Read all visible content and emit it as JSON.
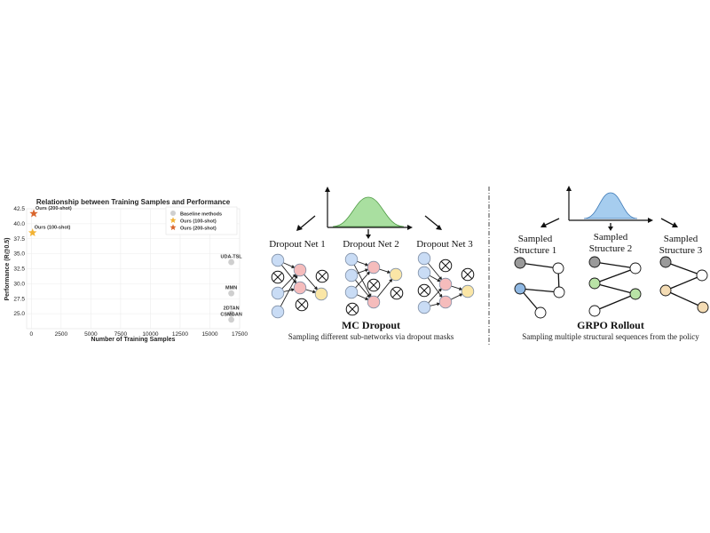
{
  "chart_data": {
    "type": "scatter",
    "title": "Relationship between Training Samples and Performance",
    "xlabel": "Number of Training Samples",
    "ylabel": "Performance (R@0.5)",
    "xlim": [
      -400,
      17500
    ],
    "ylim": [
      22.5,
      42.5
    ],
    "xticks": [
      0,
      2500,
      5000,
      7500,
      10000,
      12500,
      15000,
      17500
    ],
    "xtick_labels": [
      "0",
      "2500",
      "5000",
      "7500",
      "10000",
      "12500",
      "15000",
      "17500"
    ],
    "yticks": [
      25.0,
      27.5,
      30.0,
      32.5,
      35.0,
      37.5,
      40.0,
      42.5
    ],
    "ytick_labels": [
      "25.0",
      "27.5",
      "30.0",
      "32.5",
      "35.0",
      "37.5",
      "40.0",
      "42.5"
    ],
    "grid": true,
    "legend_position": "top-right",
    "series": [
      {
        "name": "Baseline methods",
        "marker": "circle",
        "color": "#cfcfcf",
        "points": [
          {
            "x": 16800,
            "y": 33.6,
            "label": "UDA-TSL"
          },
          {
            "x": 16800,
            "y": 28.4,
            "label": "MMN"
          },
          {
            "x": 16800,
            "y": 25.0,
            "label": "2DTAN"
          },
          {
            "x": 16800,
            "y": 24.0,
            "label": "CSMGAN"
          }
        ]
      },
      {
        "name": "Ours (100-shot)",
        "marker": "star",
        "color": "#f2b233",
        "points": [
          {
            "x": 100,
            "y": 38.5,
            "label": "Ours (100-shot)"
          }
        ]
      },
      {
        "name": "Ours (200-shot)",
        "marker": "star",
        "color": "#d9652c",
        "points": [
          {
            "x": 200,
            "y": 41.7,
            "label": "Ours (200-shot)"
          }
        ]
      }
    ]
  },
  "mc_dropout": {
    "nets": [
      "Dropout Net 1",
      "Dropout Net 2",
      "Dropout Net 3"
    ],
    "title": "MC Dropout",
    "caption": "Sampling different sub-networks via dropout masks",
    "curve_color": "#a9dfa0"
  },
  "grpo": {
    "structures": [
      {
        "line1": "Sampled",
        "line2": "Structure 1"
      },
      {
        "line1": "Sampled",
        "line2": "Structure 2"
      },
      {
        "line1": "Sampled",
        "line2": "Structure 3"
      }
    ],
    "title": "GRPO Rollout",
    "caption": "Sampling multiple structural sequences from the policy",
    "curve_color": "#a6cdef"
  },
  "colors": {
    "neuron_blue": "#c9dcf5",
    "neuron_red": "#f5bcbc",
    "neuron_yellow": "#fae6a6",
    "node_gray": "#9a9a9a",
    "node_blue": "#8fb8e3",
    "node_green": "#b9e3a6",
    "node_peach": "#f4dcb4"
  }
}
